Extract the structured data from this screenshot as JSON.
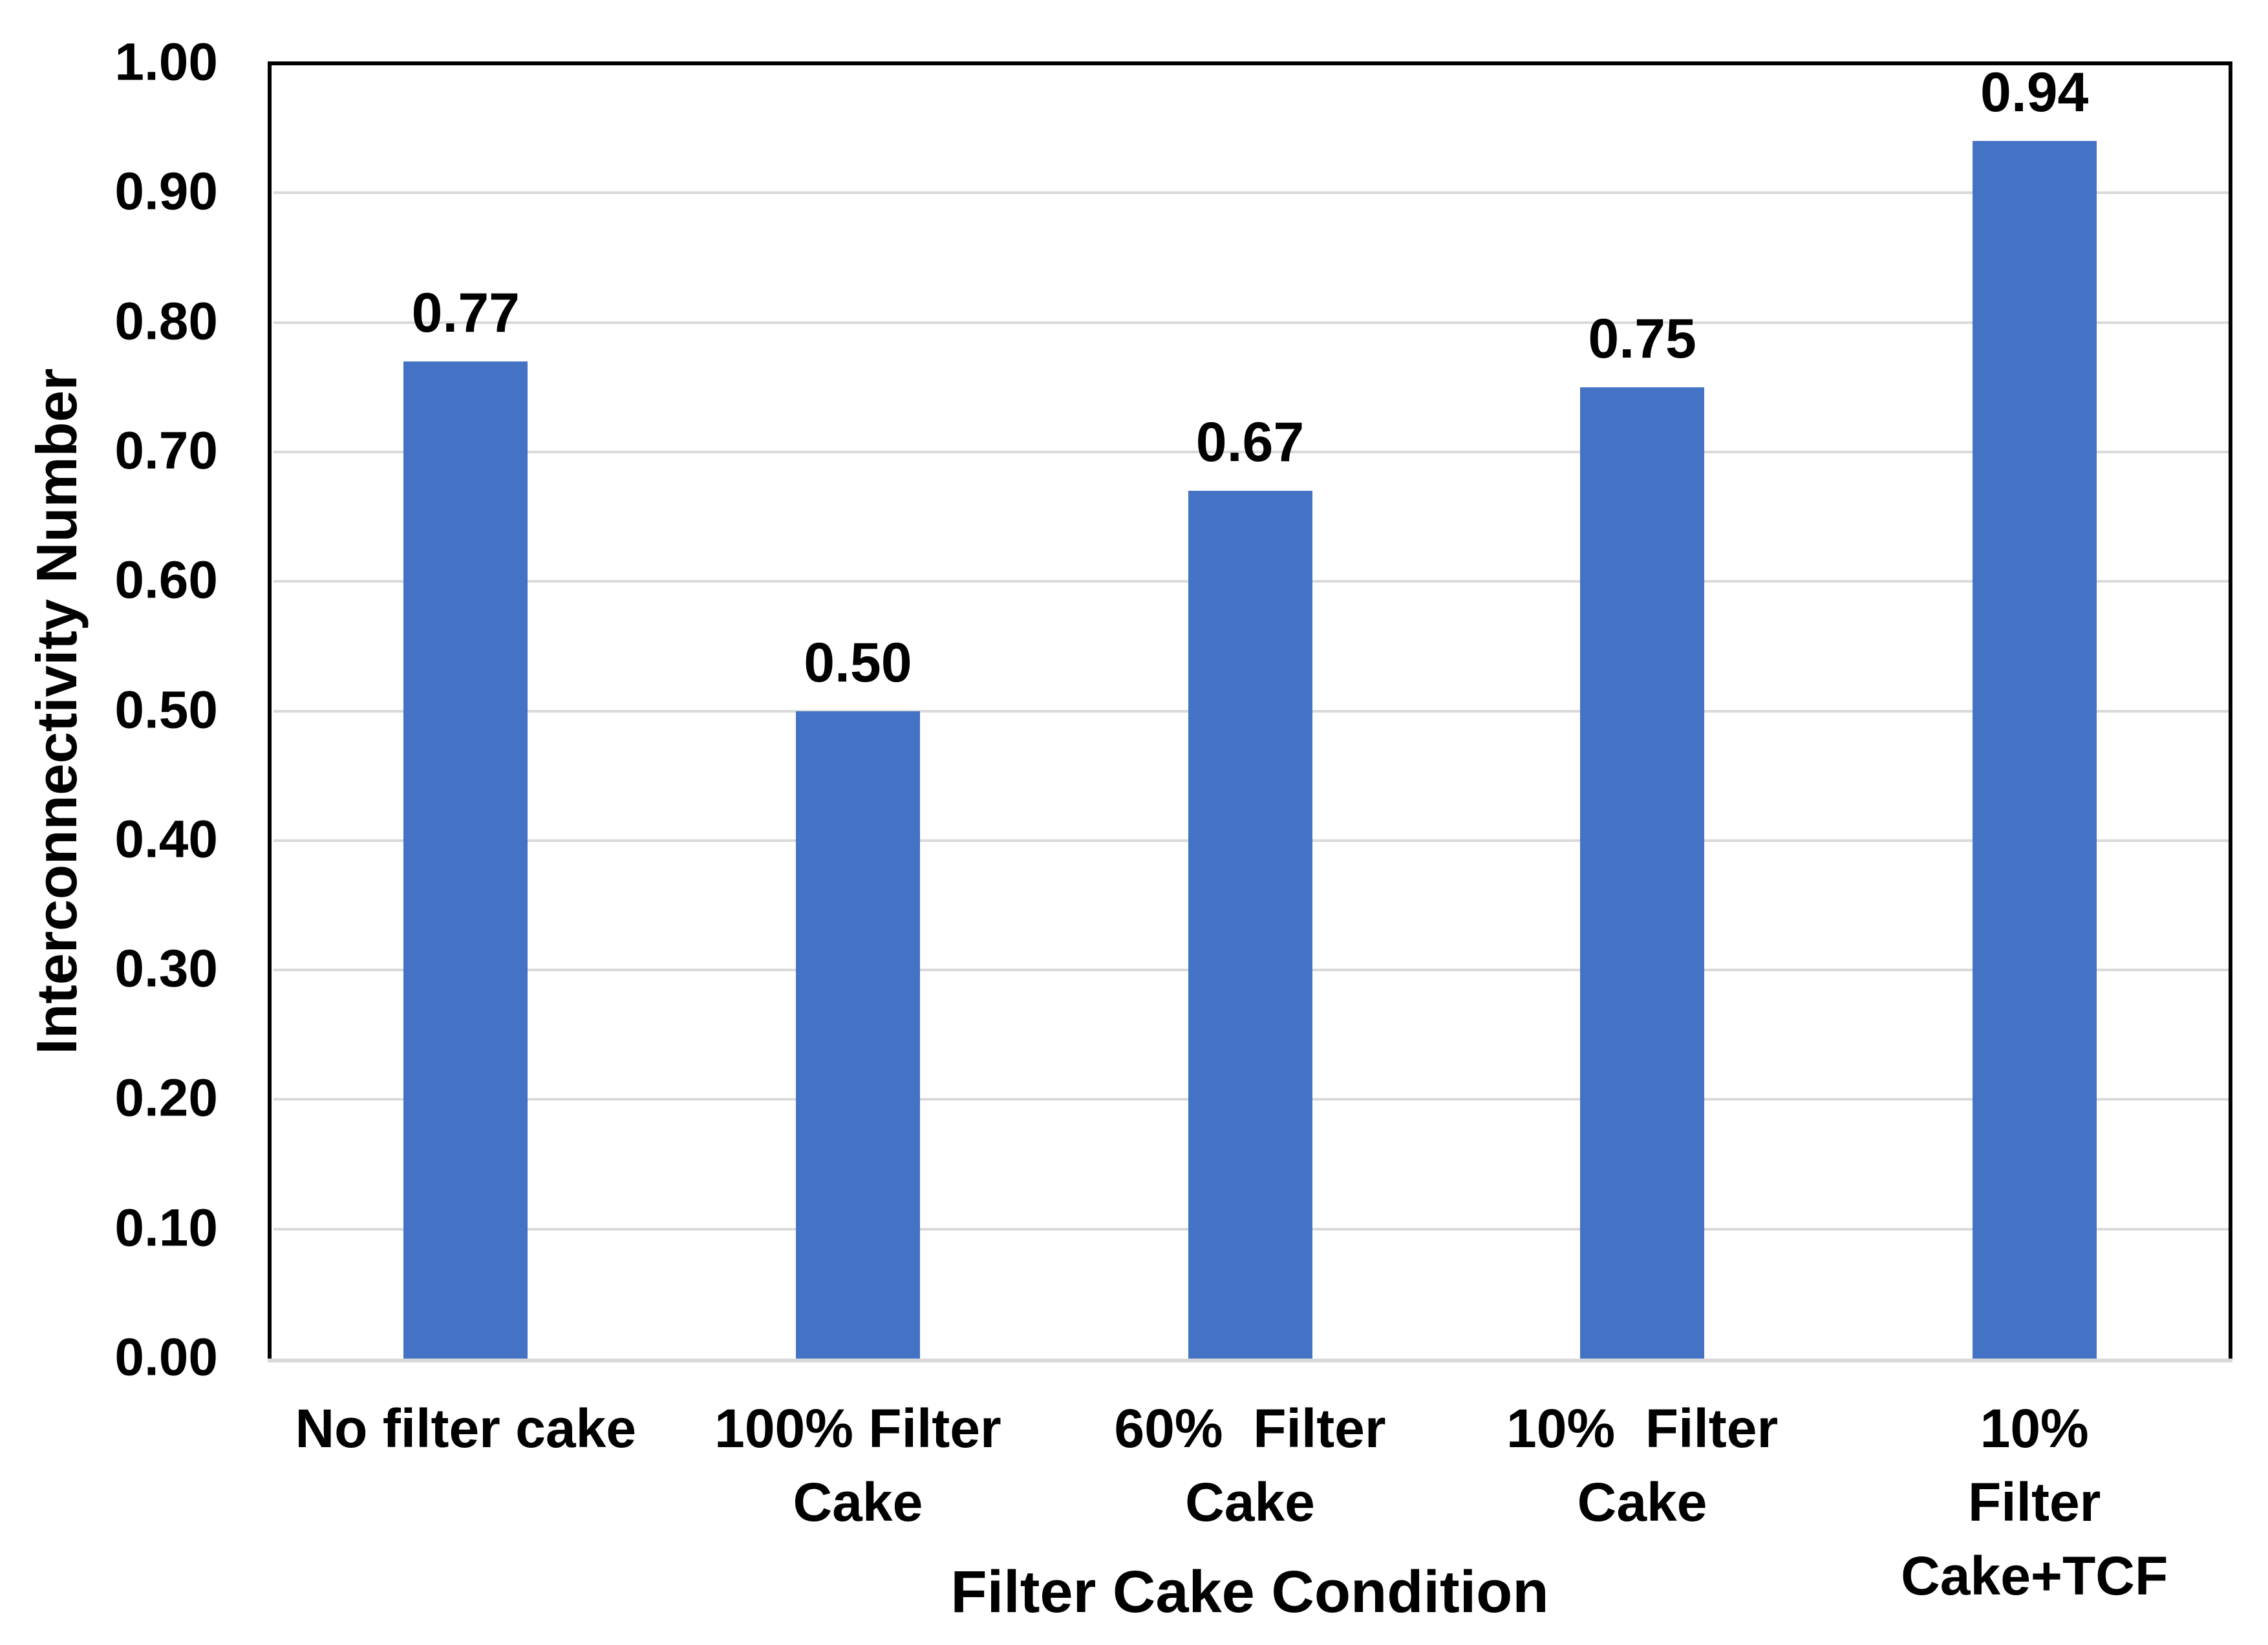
{
  "chart_data": {
    "type": "bar",
    "title": "",
    "xlabel": "Filter Cake Condition",
    "ylabel": "Interconnectivity Number",
    "categories": [
      "No filter cake",
      "100% Filter\nCake",
      "60%  Filter\nCake",
      "10%  Filter\nCake",
      "10%  Filter\nCake+TCF"
    ],
    "values": [
      0.77,
      0.5,
      0.67,
      0.75,
      0.94
    ],
    "value_labels": [
      "0.77",
      "0.50",
      "0.67",
      "0.75",
      "0.94"
    ],
    "ylim": [
      0.0,
      1.0
    ],
    "ytick_step": 0.1,
    "ytick_labels": [
      "0.00",
      "0.10",
      "0.20",
      "0.30",
      "0.40",
      "0.50",
      "0.60",
      "0.70",
      "0.80",
      "0.90",
      "1.00"
    ],
    "grid": true,
    "legend": false,
    "colors": {
      "bar": "#4472C4",
      "gridline": "#D9D9D9",
      "plot_border": "#000000",
      "x_axis_line": "#D9D9D9",
      "text": "#000000",
      "background": "#FFFFFF"
    }
  }
}
